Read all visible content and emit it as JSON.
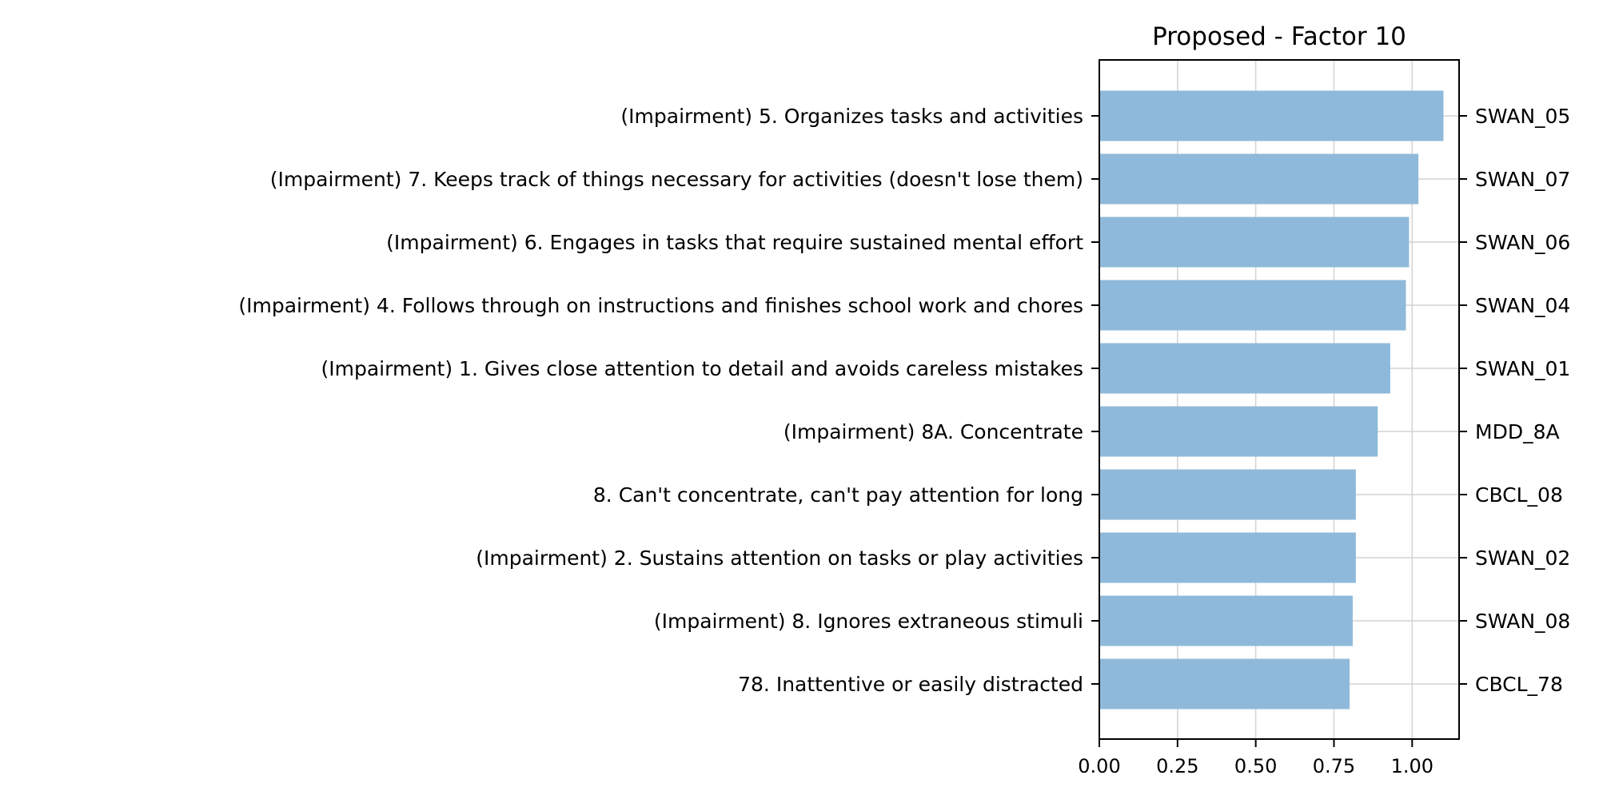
{
  "chart_data": {
    "type": "bar",
    "orientation": "horizontal",
    "title": "Proposed - Factor 10",
    "xlabel": "",
    "ylabel": "",
    "xlim": [
      0,
      1.15
    ],
    "xticks": [
      0,
      0.25,
      0.5,
      0.75,
      1.0
    ],
    "xtick_labels": [
      "0.00",
      "0.25",
      "0.50",
      "0.75",
      "1.00"
    ],
    "grid": true,
    "bar_color": "#8fb9da",
    "categories": [
      "(Impairment) 5. Organizes tasks and activities",
      "(Impairment) 7. Keeps track of things necessary for activities (doesn't lose them)",
      "(Impairment) 6. Engages in tasks that require sustained mental effort",
      "(Impairment) 4. Follows through on instructions and finishes school work and chores",
      "(Impairment) 1. Gives close attention to detail and avoids careless mistakes",
      "(Impairment) 8A. Concentrate",
      "8. Can't concentrate, can't pay attention for long",
      "(Impairment) 2. Sustains attention on tasks or play activities",
      "(Impairment) 8. Ignores extraneous stimuli",
      "78. Inattentive or easily distracted"
    ],
    "codes": [
      "SWAN_05",
      "SWAN_07",
      "SWAN_06",
      "SWAN_04",
      "SWAN_01",
      "MDD_8A",
      "CBCL_08",
      "SWAN_02",
      "SWAN_08",
      "CBCL_78"
    ],
    "values": [
      1.1,
      1.02,
      0.99,
      0.98,
      0.93,
      0.89,
      0.82,
      0.82,
      0.81,
      0.8
    ]
  }
}
